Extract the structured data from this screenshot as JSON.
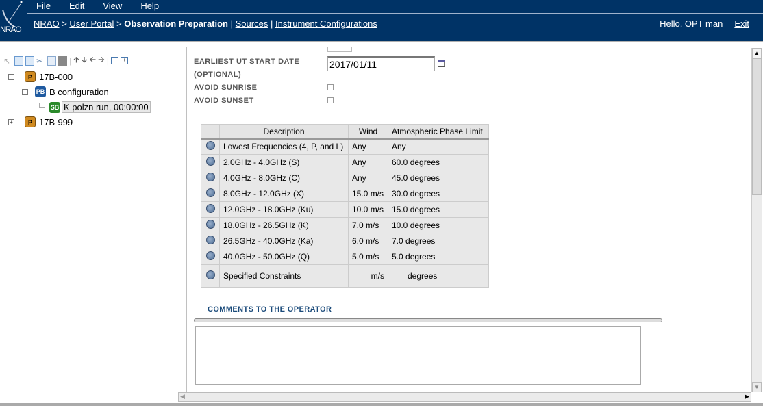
{
  "header": {
    "logo_text": "NRAO",
    "menu": [
      "File",
      "Edit",
      "View",
      "Help"
    ],
    "breadcrumb": {
      "home": "NRAO",
      "portal": "User Portal",
      "current": "Observation Preparation",
      "links": [
        "Sources",
        "Instrument Configurations"
      ],
      "sep_arrow": ">",
      "sep_bar": "|"
    },
    "greeting": "Hello, OPT man",
    "exit": "Exit"
  },
  "tree": [
    {
      "badge": "P",
      "label": "17B-000",
      "expanded": true
    },
    {
      "badge": "PB",
      "label": "B configuration",
      "expanded": true
    },
    {
      "badge": "SB",
      "label": "K polzn run, 00:00:00",
      "selected": true
    },
    {
      "badge": "P",
      "label": "17B-999",
      "expanded": false
    }
  ],
  "form": {
    "start_date_label": "EARLIEST UT START DATE",
    "start_date_label2": "(OPTIONAL)",
    "start_date": "2017/01/11",
    "avoid_sunrise": "AVOID SUNRISE",
    "avoid_sunset": "AVOID SUNSET",
    "avoid_sunrise_checked": false,
    "avoid_sunset_checked": false
  },
  "table": {
    "headers": [
      "Description",
      "Wind",
      "Atmospheric Phase Limit"
    ],
    "rows": [
      [
        "Lowest Frequencies (4, P, and L)",
        "Any",
        "Any"
      ],
      [
        "2.0GHz - 4.0GHz (S)",
        "Any",
        "60.0 degrees"
      ],
      [
        "4.0GHz - 8.0GHz (C)",
        "Any",
        "45.0 degrees"
      ],
      [
        "8.0GHz - 12.0GHz (X)",
        "15.0 m/s",
        "30.0 degrees"
      ],
      [
        "12.0GHz - 18.0GHz (Ku)",
        "10.0 m/s",
        "15.0 degrees"
      ],
      [
        "18.0GHz - 26.5GHz (K)",
        "7.0 m/s",
        "10.0 degrees"
      ],
      [
        "26.5GHz - 40.0GHz (Ka)",
        "6.0 m/s",
        "7.0 degrees"
      ],
      [
        "40.0GHz - 50.0GHz (Q)",
        "5.0 m/s",
        "5.0 degrees"
      ]
    ],
    "custom": {
      "label": "Specified Constraints",
      "wind_unit": "m/s",
      "phase_unit": "degrees"
    }
  },
  "comments": {
    "label": "COMMENTS TO THE OPERATOR",
    "value": ""
  },
  "colors": {
    "header_bg": "#003366",
    "comment_label": "#1a4a7a"
  }
}
